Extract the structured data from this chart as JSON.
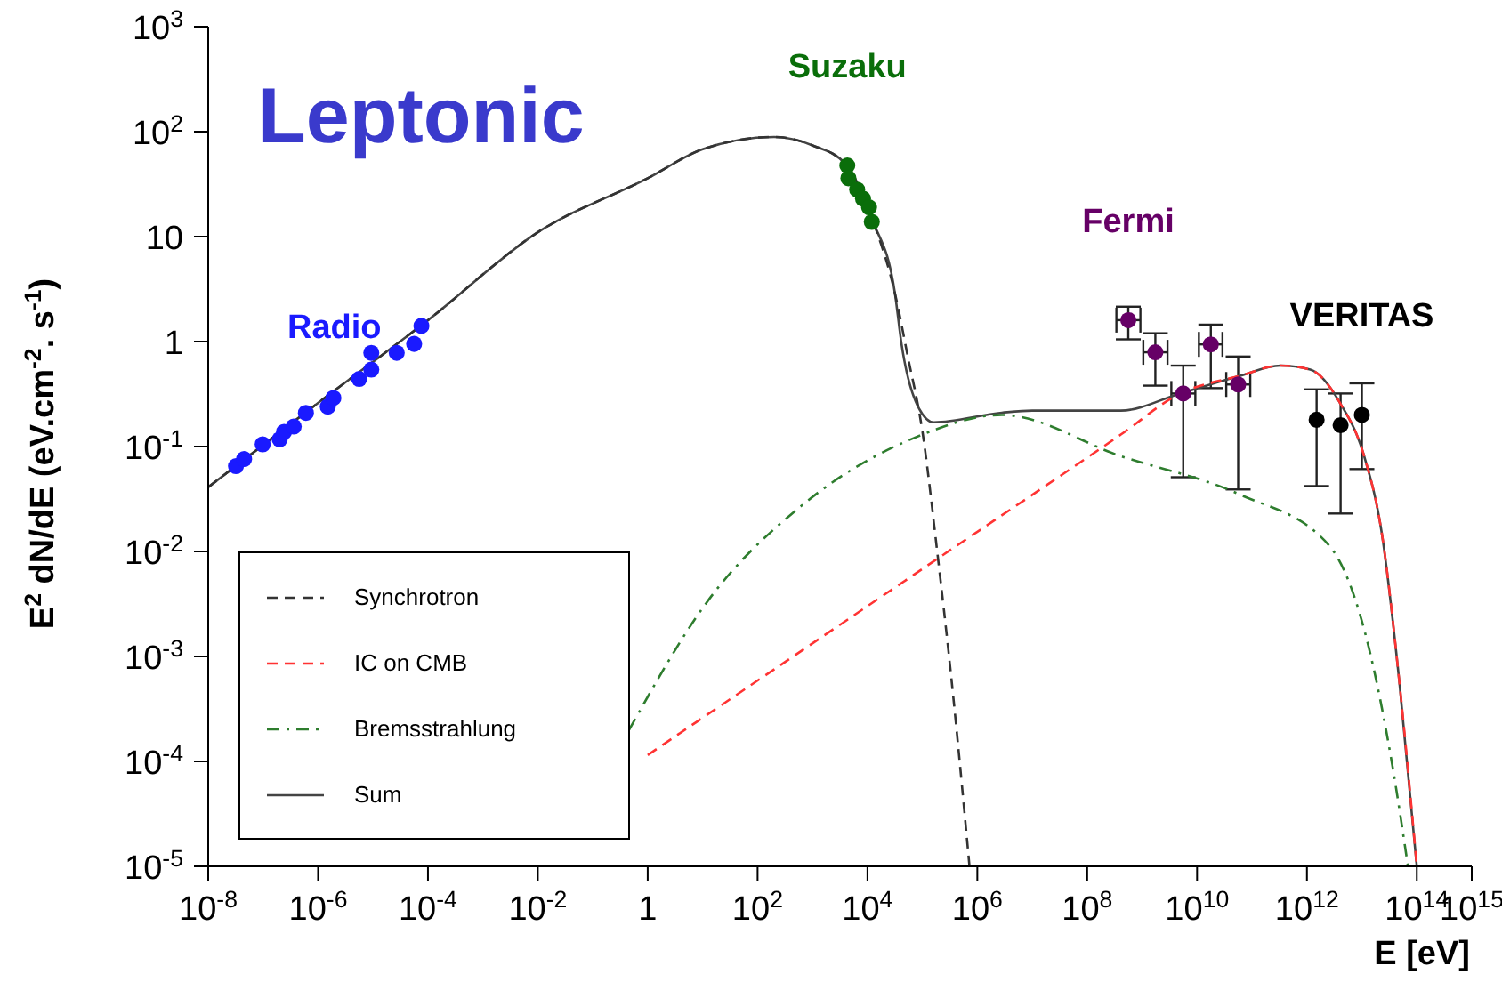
{
  "chart_data": {
    "type": "line",
    "annotations": [
      "Leptonic"
    ],
    "xlabel": "E [eV]",
    "ylabel": "E$^{2}$ dN/dE (eV.cm$^{-2}$. s$^{-1}$)",
    "log": "xy",
    "xlim": [
      1e-08,
      1000000000000000.0
    ],
    "xticks": [
      {
        "value": 1e-08,
        "label": "10$^{-8}$"
      },
      {
        "value": 1e-06,
        "label": "10$^{-6}$"
      },
      {
        "value": 0.0001,
        "label": "10$^{-4}$"
      },
      {
        "value": 0.01,
        "label": "10$^{-2}$"
      },
      1,
      {
        "value": 100,
        "label": "10$^{2}$"
      },
      {
        "value": 10000.0,
        "label": "10$^{4}$"
      },
      {
        "value": 1000000.0,
        "label": "10$^{6}$"
      },
      {
        "value": 100000000.0,
        "label": "10$^{8}$"
      },
      {
        "value": 10000000000.0,
        "label": "10$^{10}$"
      },
      {
        "value": 1000000000000.0,
        "label": "10$^{12}$"
      },
      {
        "value": 100000000000000.0,
        "label": "10$^{14}$"
      },
      {
        "value": 1000000000000000.0,
        "label": "10$^{15}$"
      }
    ],
    "ylim": [
      1e-05,
      1000
    ],
    "yticks": [
      {
        "value": 1e-05,
        "label": "10$^{-5}$"
      },
      {
        "value": 0.0001,
        "label": "10$^{-4}$"
      },
      {
        "value": 0.001,
        "label": "10$^{-3}$"
      },
      {
        "value": 0.01,
        "label": "10$^{-2}$"
      },
      {
        "value": 0.1,
        "label": "10$^{-1}$"
      },
      1,
      10,
      {
        "value": 100,
        "label": "10$^{2}$"
      },
      {
        "value": 1000,
        "label": "10$^{3}$"
      }
    ],
    "grid": false,
    "legend": "bottom left",
    "series": [
      {
        "name": "Synchrotron",
        "color": "#333333",
        "line_style": "dashed",
        "x": [
          1e-08,
          1e-06,
          0.0001,
          0.01,
          1,
          10,
          200,
          1000,
          4000,
          12600,
          31600,
          53700,
          100000,
          186000,
          350000,
          720000
        ],
        "values": [
          0.041,
          0.26,
          1.6,
          11,
          36,
          68,
          89,
          74,
          49,
          14,
          2.9,
          0.74,
          0.14,
          0.01,
          0.00051,
          1e-05
        ]
      },
      {
        "name": "IC on CMB",
        "color": "#ff3333",
        "line_style": "dashed",
        "x": [
          1,
          240000,
          410000000.0,
          4900000000.0,
          59000000000.0,
          330000000000.0,
          1150000000000.0,
          4000000000000.0,
          11000000000000.0,
          23000000000000.0,
          48000000000000.0,
          100000000000000.0
        ],
        "values": [
          0.000115,
          0.0093,
          0.13,
          0.32,
          0.47,
          0.59,
          0.54,
          0.26,
          0.081,
          0.015,
          0.00058,
          1e-05
        ]
      },
      {
        "name": "Bremsstrahlung",
        "color": "#2e7d2e",
        "line_style": "dashdot",
        "x": [
          0.46,
          11.5,
          617,
          69000,
          2800000.0,
          410000000.0,
          59000000000.0,
          2500000000000.0,
          14000000000000.0,
          37000000000000.0,
          69000000000000.0
        ],
        "values": [
          0.0002,
          0.0032,
          0.027,
          0.12,
          0.2,
          0.081,
          0.035,
          0.0115,
          0.0011,
          8.3e-05,
          1e-05
        ]
      },
      {
        "name": "Sum",
        "color": "#444444",
        "line_style": "solid",
        "x": [
          1e-08,
          1e-06,
          0.0001,
          0.01,
          1,
          10,
          200,
          1000,
          4000,
          12600,
          31600,
          41700,
          87000,
          162000,
          2800000.0,
          10000000.0,
          410000000.0,
          4900000000.0,
          59000000000.0,
          330000000000.0,
          1150000000000.0,
          4000000000000.0,
          11000000000000.0,
          23000000000000.0,
          48000000000000.0,
          100000000000000.0
        ],
        "values": [
          0.041,
          0.26,
          1.6,
          11,
          36,
          68,
          89,
          74,
          49,
          14,
          2.9,
          0.95,
          0.23,
          0.17,
          0.21,
          0.22,
          0.22,
          0.32,
          0.47,
          0.59,
          0.54,
          0.26,
          0.081,
          0.015,
          0.00058,
          1e-05
        ]
      },
      {
        "type": "scatter",
        "name": "Radio",
        "color": "#1a1aff",
        "marker": "circle",
        "x": [
          3.2e-08,
          4.5e-08,
          9.8e-08,
          2e-07,
          2.4e-07,
          3.6e-07,
          6e-07,
          1.5e-06,
          1.9e-06,
          5.6e-06,
          9.3e-06,
          9.3e-06,
          2.7e-05,
          5.6e-05,
          7.6e-05
        ],
        "values": [
          0.065,
          0.076,
          0.105,
          0.117,
          0.138,
          0.155,
          0.209,
          0.24,
          0.29,
          0.44,
          0.54,
          0.78,
          0.78,
          0.95,
          1.41
        ]
      },
      {
        "type": "scatter",
        "name": "Suzaku",
        "color": "#0a6e0a",
        "marker": "circle",
        "x": [
          4300,
          4500,
          6500,
          8300,
          10700,
          12000
        ],
        "values": [
          47.6,
          36,
          28,
          23,
          19,
          13.8
        ]
      },
      {
        "type": "scatter",
        "name": "Fermi",
        "color": "#660066",
        "marker": "circle",
        "x": [
          560000000.0,
          1740000000.0,
          17800000000.0,
          5600000000.0,
          56000000000.0
        ],
        "values": [
          1.6,
          0.79,
          0.94,
          0.32,
          0.39
        ],
        "errors": [
          [
            1.05,
            2.15
          ],
          [
            0.38,
            1.2
          ],
          [
            0.36,
            1.45
          ],
          [
            0.051,
            0.59
          ],
          [
            0.039,
            0.72
          ]
        ],
        "xerrors": [
          [
            340000000.0,
            930000000.0
          ],
          [
            1050000000.0,
            2900000000.0
          ],
          [
            10800000000.0,
            29000000000.0
          ],
          [
            3400000000.0,
            9300000000.0
          ],
          [
            34000000000.0,
            93000000000.0
          ]
        ]
      },
      {
        "type": "scatter",
        "name": "VERITAS",
        "color": "#000000",
        "marker": "circle",
        "x": [
          1500000000000.0,
          4100000000000.0,
          10000000000000.0
        ],
        "values": [
          0.18,
          0.16,
          0.2
        ],
        "errors": [
          [
            0.042,
            0.35
          ],
          [
            0.023,
            0.32
          ],
          [
            0.061,
            0.4
          ]
        ]
      }
    ]
  }
}
